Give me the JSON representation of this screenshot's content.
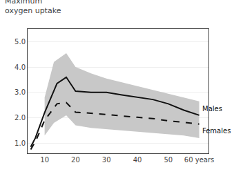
{
  "chart_data": {
    "type": "line",
    "title": "Maximum\noxygen uptake",
    "xlim": [
      4.5,
      63
    ],
    "ylim": [
      0.6,
      5.5
    ],
    "xticks": [
      10,
      20,
      30,
      40,
      50,
      {
        "value": 60,
        "label": "60 years"
      }
    ],
    "yticks": [
      {
        "value": 1.0,
        "label": "1.0"
      },
      {
        "value": 2.0,
        "label": "2.0"
      },
      {
        "value": 3.0,
        "label": "3.0"
      },
      {
        "value": 4.0,
        "label": "4.0"
      },
      {
        "value": 5.0,
        "label": "5.0"
      }
    ],
    "grid": "y",
    "series": [
      {
        "type": "band",
        "color": "#c8c8c8",
        "x": [
          10,
          13,
          17,
          20,
          25,
          30,
          35,
          40,
          45,
          50,
          55,
          60
        ],
        "upper": [
          2.8,
          4.2,
          4.55,
          4.0,
          3.75,
          3.55,
          3.4,
          3.25,
          3.1,
          2.95,
          2.8,
          2.65
        ],
        "lower": [
          1.3,
          1.8,
          2.1,
          1.7,
          1.6,
          1.55,
          1.5,
          1.45,
          1.4,
          1.35,
          1.3,
          1.2
        ]
      },
      {
        "type": "line",
        "name": "Males",
        "color": "#111111",
        "line_style": "solid",
        "x": [
          5.5,
          7,
          10,
          14,
          17,
          20,
          25,
          30,
          35,
          40,
          45,
          50,
          55,
          60
        ],
        "values": [
          0.85,
          1.2,
          2.2,
          3.35,
          3.6,
          3.05,
          3.0,
          3.0,
          2.9,
          2.8,
          2.72,
          2.55,
          2.3,
          2.1
        ]
      },
      {
        "type": "line",
        "name": "Females",
        "color": "#111111",
        "line_style": "dashed",
        "x": [
          5.5,
          7,
          10,
          14,
          17,
          20,
          25,
          30,
          35,
          40,
          45,
          50,
          55,
          60
        ],
        "values": [
          0.75,
          1.05,
          1.9,
          2.55,
          2.6,
          2.22,
          2.18,
          2.12,
          2.07,
          2.02,
          1.97,
          1.88,
          1.82,
          1.75
        ]
      }
    ]
  }
}
